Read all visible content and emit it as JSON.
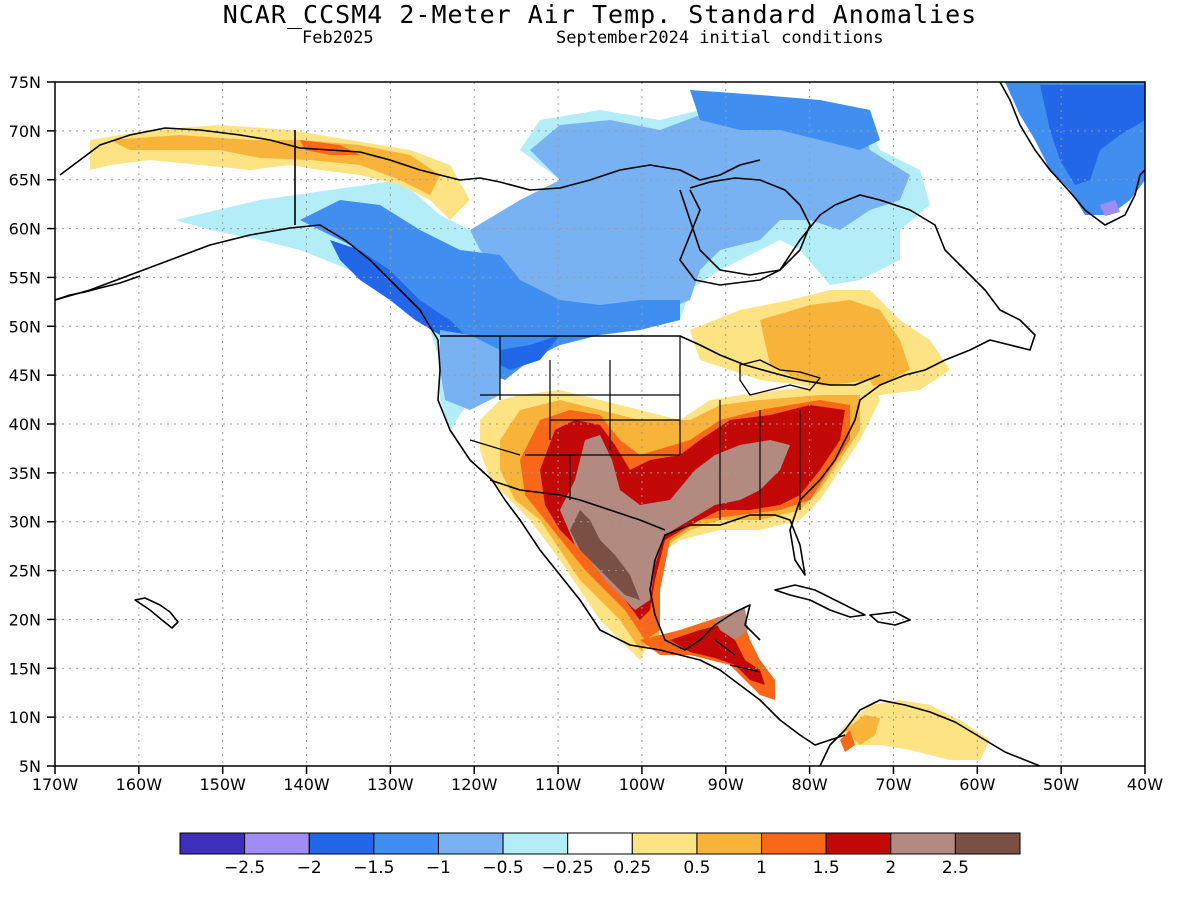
{
  "title": "NCAR_CCSM4 2-Meter Air Temp. Standard Anomalies",
  "subtitle_left": "Feb2025",
  "subtitle_right": "September2024 initial conditions",
  "map": {
    "lon_range": [
      -170,
      -40
    ],
    "lat_range": [
      5,
      75
    ],
    "lat_ticks": [
      "75N",
      "70N",
      "65N",
      "60N",
      "55N",
      "50N",
      "45N",
      "40N",
      "35N",
      "30N",
      "25N",
      "20N",
      "15N",
      "10N",
      "5N"
    ],
    "lon_ticks": [
      "170W",
      "160W",
      "150W",
      "140W",
      "130W",
      "120W",
      "110W",
      "100W",
      "90W",
      "80W",
      "70W",
      "60W",
      "50W",
      "40W"
    ],
    "grid": true
  },
  "colorbar": {
    "colors": [
      "#3f2ebc",
      "#a08cf6",
      "#2367e9",
      "#3f8ef0",
      "#79b2f3",
      "#b3eef8",
      "#ffffff",
      "#fde383",
      "#f8b43a",
      "#f86818",
      "#c30907",
      "#b38a80",
      "#7a5044"
    ],
    "labels": [
      "−2.5",
      "−2",
      "−1.5",
      "−1",
      "−0.5",
      "−0.25",
      "0.25",
      "0.5",
      "1",
      "1.5",
      "2",
      "2.5"
    ]
  },
  "anomaly_regions": [
    {
      "level": "-1.5",
      "color": "#2367e9"
    },
    {
      "level": "-1",
      "color": "#3f8ef0"
    },
    {
      "level": "-0.5",
      "color": "#79b2f3"
    },
    {
      "level": "-0.25",
      "color": "#b3eef8"
    },
    {
      "level": "0.5",
      "color": "#fde383"
    },
    {
      "level": "1",
      "color": "#f8b43a"
    },
    {
      "level": "1.5",
      "color": "#f86818"
    },
    {
      "level": "2",
      "color": "#c30907"
    },
    {
      "level": "2.5",
      "color": "#b38a80"
    },
    {
      "level": ">2.5",
      "color": "#7a5044"
    },
    {
      "level": "-2.5",
      "color": "#a08cf6"
    }
  ]
}
